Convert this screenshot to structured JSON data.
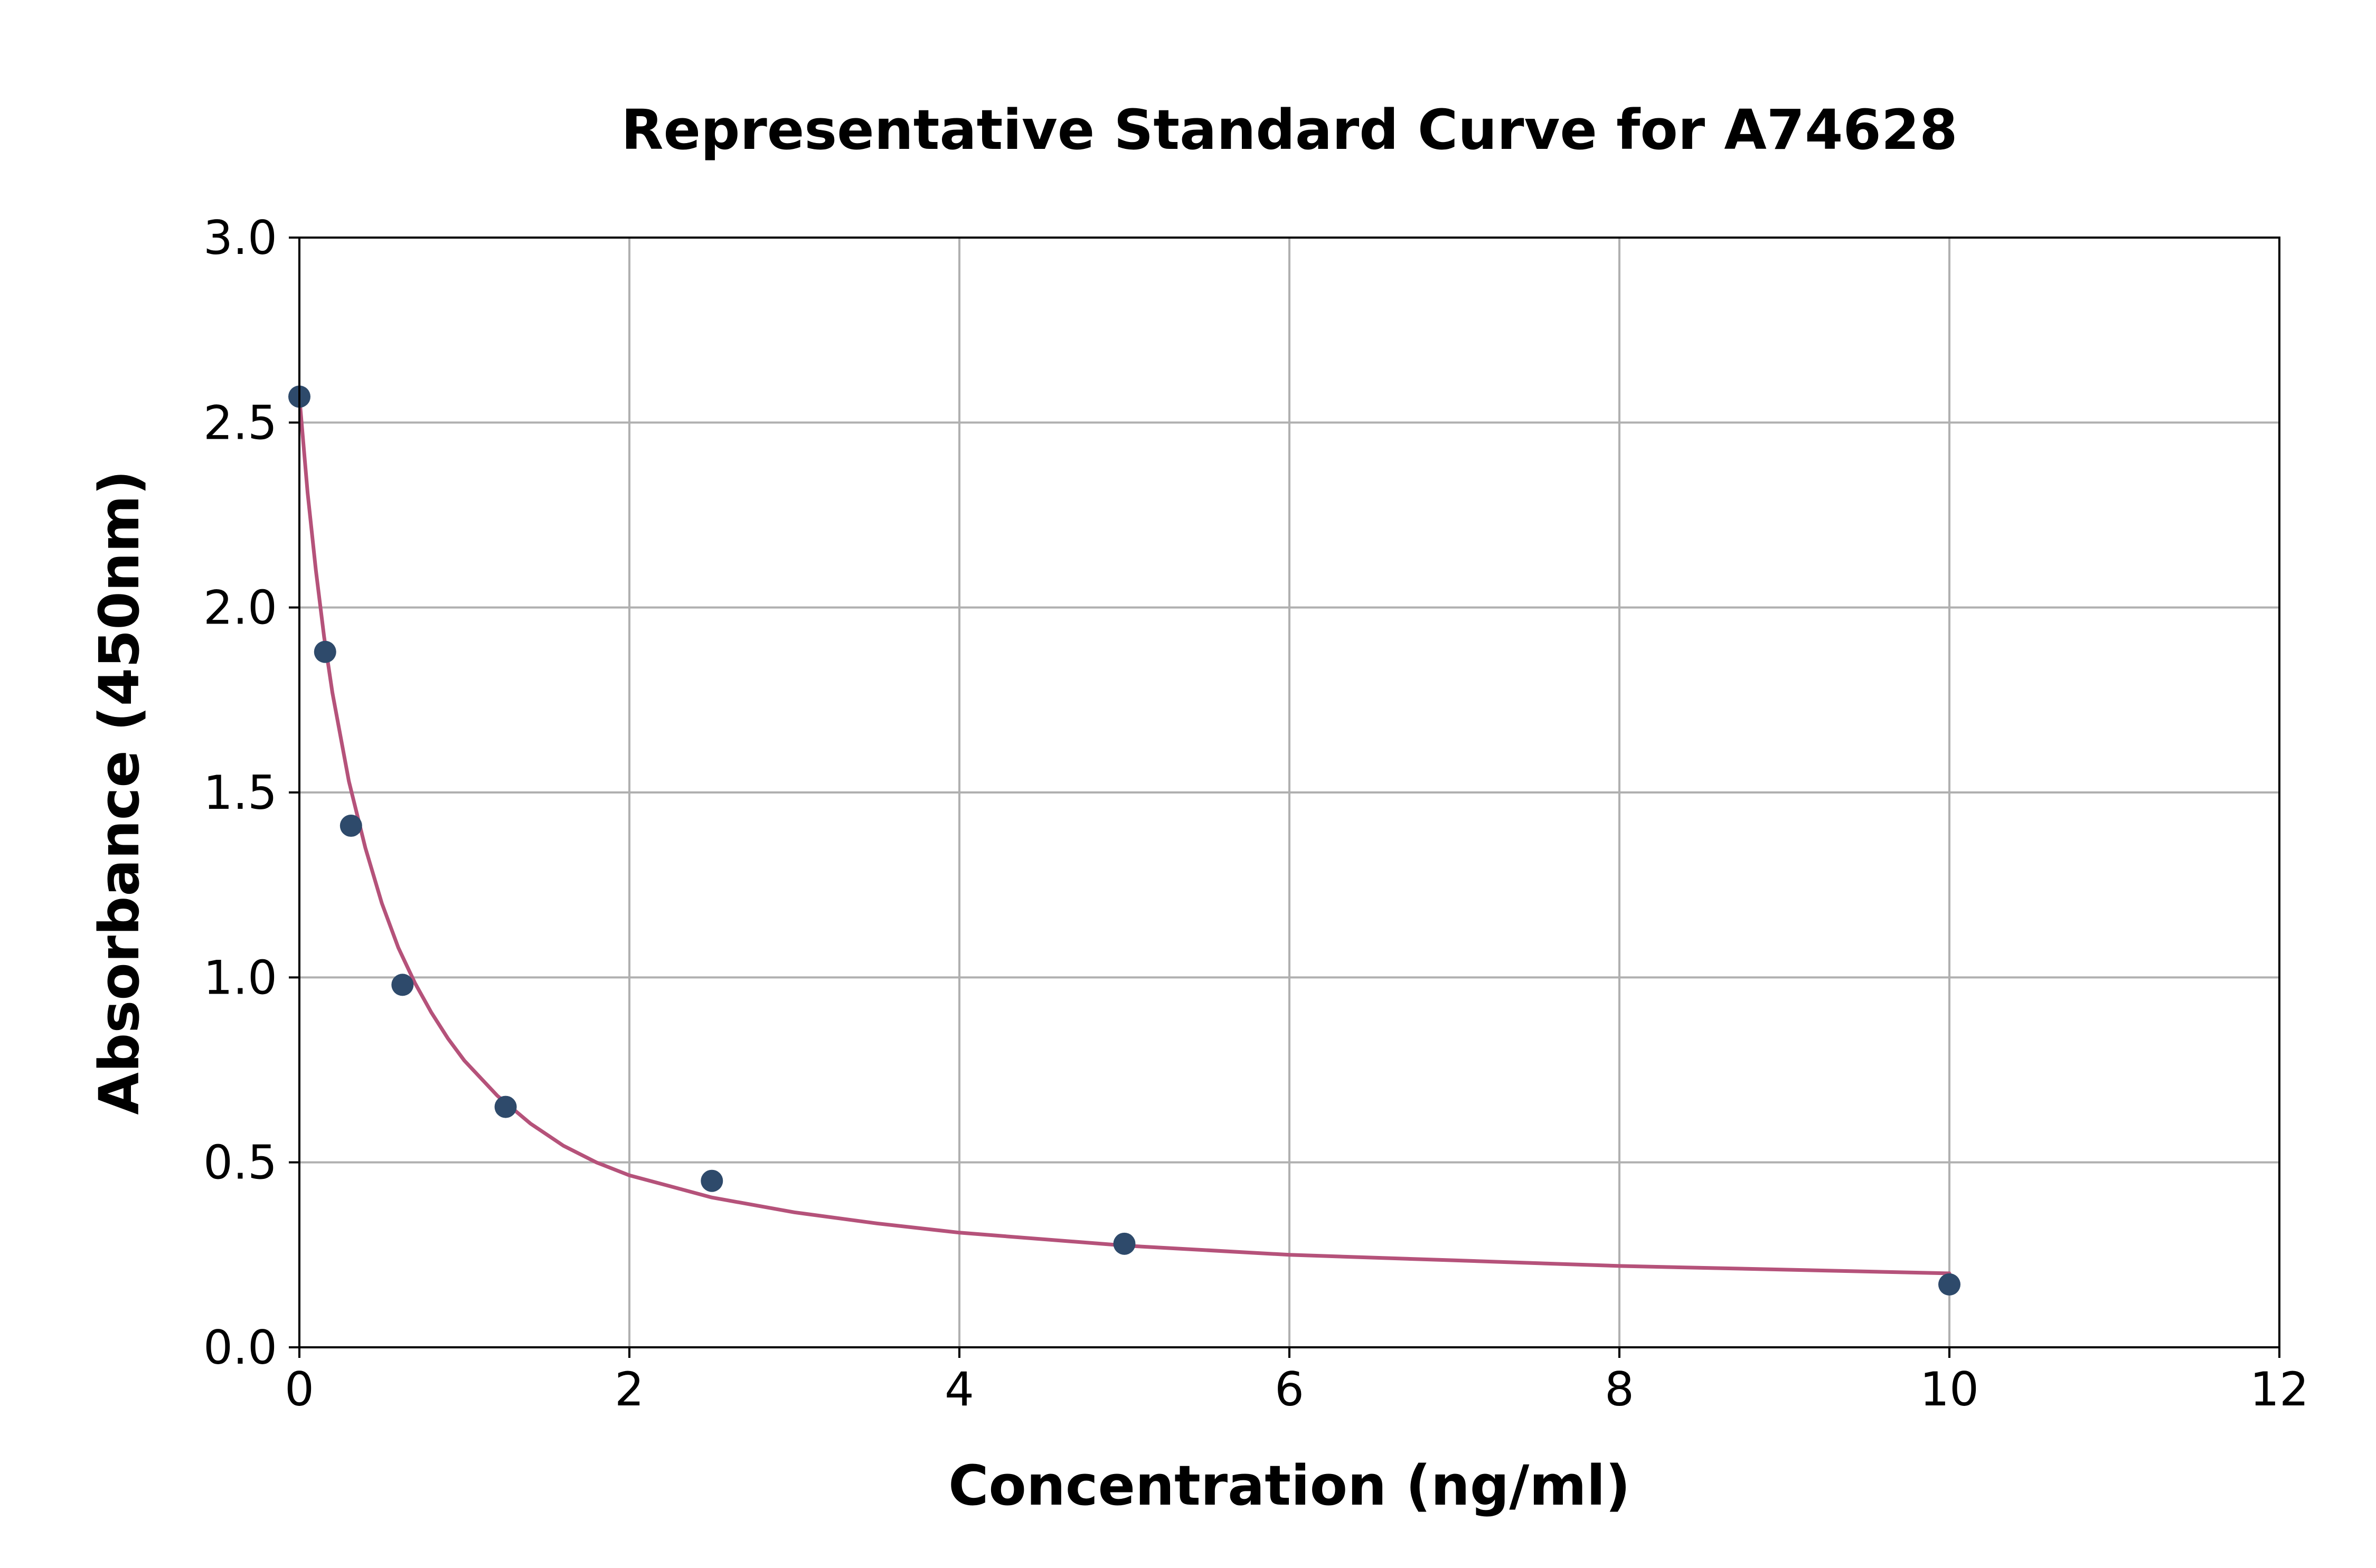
{
  "chart_data": {
    "type": "scatter",
    "title": "Representative Standard Curve for A74628",
    "xlabel": "Concentration (ng/ml)",
    "ylabel": "Absorbance (450nm)",
    "xlim": [
      0,
      12
    ],
    "ylim": [
      0,
      3.0
    ],
    "xticks": [
      "0",
      "2",
      "4",
      "6",
      "8",
      "10",
      "12"
    ],
    "yticks": [
      "0.0",
      "0.5",
      "1.0",
      "1.5",
      "2.0",
      "2.5",
      "3.0"
    ],
    "grid": true,
    "legend": "none",
    "series": [
      {
        "kind": "points",
        "color": "#2e4a6b",
        "x": [
          0,
          0.156,
          0.313,
          0.625,
          1.25,
          2.5,
          5,
          10
        ],
        "y": [
          2.57,
          1.88,
          1.41,
          0.98,
          0.65,
          0.45,
          0.28,
          0.17
        ]
      },
      {
        "kind": "fit-curve",
        "color": "#b5527a",
        "x": [
          0,
          0.05,
          0.1,
          0.15,
          0.2,
          0.3,
          0.4,
          0.5,
          0.6,
          0.7,
          0.8,
          0.9,
          1.0,
          1.2,
          1.4,
          1.6,
          1.8,
          2.0,
          2.5,
          3.0,
          3.5,
          4.0,
          5.0,
          6.0,
          7.0,
          8.0,
          9.0,
          10.0
        ],
        "y": [
          2.57,
          2.31,
          2.1,
          1.92,
          1.77,
          1.53,
          1.35,
          1.2,
          1.08,
          0.985,
          0.905,
          0.835,
          0.775,
          0.68,
          0.605,
          0.545,
          0.5,
          0.465,
          0.405,
          0.365,
          0.335,
          0.31,
          0.275,
          0.25,
          0.235,
          0.22,
          0.21,
          0.2
        ]
      }
    ]
  }
}
